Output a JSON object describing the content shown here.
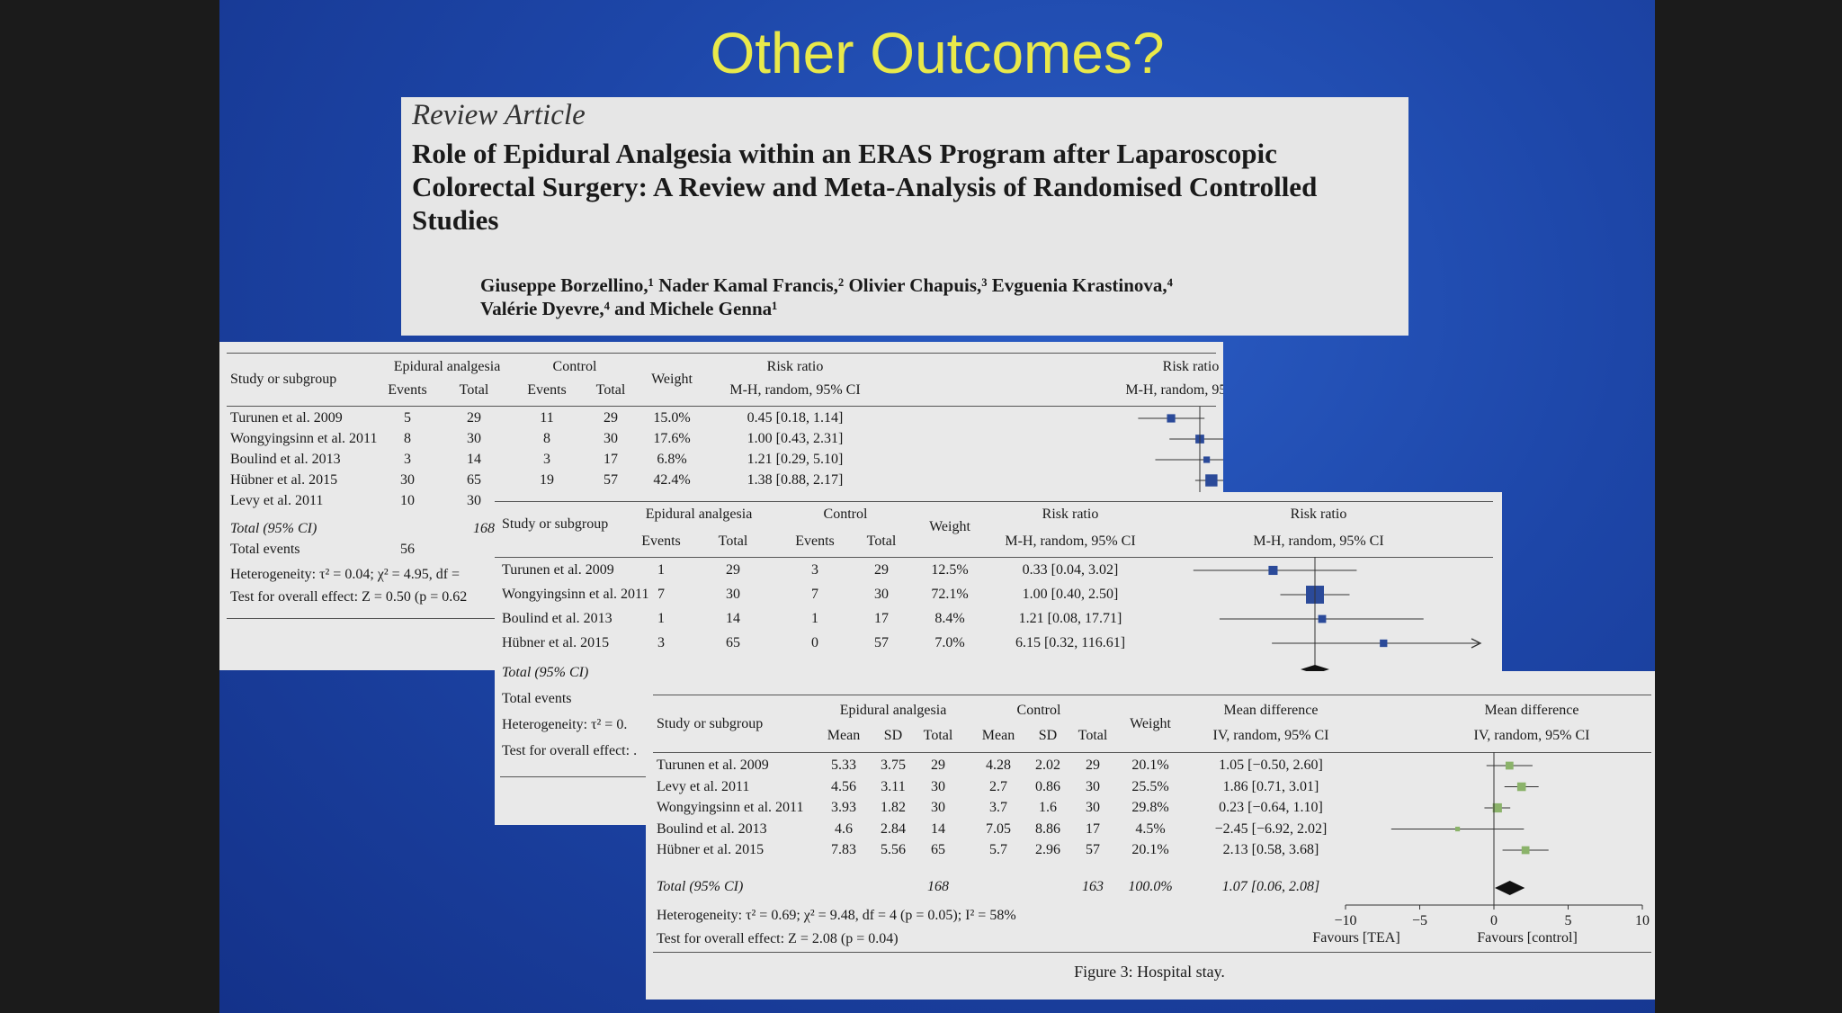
{
  "slide_title": "Other Outcomes?",
  "article": {
    "label": "Review Article",
    "title": "Role of Epidural Analgesia within an ERAS Program after Laparoscopic Colorectal Surgery: A Review and Meta-Analysis of Randomised Controlled Studies",
    "authors_line1": "Giuseppe Borzellino,¹ Nader Kamal Francis,² Olivier Chapuis,³ Evguenia Krastinova,⁴",
    "authors_line2": "Valérie Dyevre,⁴ and Michele Genna¹"
  },
  "chart_data": [
    {
      "type": "table",
      "headers": {
        "study": "Study or subgroup",
        "epidural": "Epidural analgesia",
        "control": "Control",
        "events": "Events",
        "total": "Total",
        "weight": "Weight",
        "rr": "Risk ratio",
        "rr_method": "M-H, random, 95% CI"
      },
      "rows": [
        {
          "study": "Turunen et al. 2009",
          "e_events": "5",
          "e_total": "29",
          "c_events": "11",
          "c_total": "29",
          "weight": "15.0%",
          "ci": "0.45 [0.18, 1.14]",
          "est": 0.45,
          "lo": 0.18,
          "hi": 1.14
        },
        {
          "study": "Wongyingsinn et al. 2011",
          "e_events": "8",
          "e_total": "30",
          "c_events": "8",
          "c_total": "30",
          "weight": "17.6%",
          "ci": "1.00 [0.43, 2.31]",
          "est": 1.0,
          "lo": 0.43,
          "hi": 2.31
        },
        {
          "study": "Boulind et al. 2013",
          "e_events": "3",
          "e_total": "14",
          "c_events": "3",
          "c_total": "17",
          "weight": "6.8%",
          "ci": "1.21 [0.29, 5.10]",
          "est": 1.21,
          "lo": 0.29,
          "hi": 5.1
        },
        {
          "study": "Hübner et al. 2015",
          "e_events": "30",
          "e_total": "65",
          "c_events": "19",
          "c_total": "57",
          "weight": "42.4%",
          "ci": "1.38 [0.88, 2.17]",
          "est": 1.38,
          "lo": 0.88,
          "hi": 2.17
        },
        {
          "study": "Levy et al. 2011",
          "e_events": "10",
          "e_total": "30",
          "c_events": "",
          "c_total": "",
          "weight": "",
          "ci": ""
        }
      ],
      "total_label": "Total (95% CI)",
      "total_e_total": "168",
      "events_label": "Total events",
      "events_value": "56",
      "heterogeneity": "Heterogeneity: τ² = 0.04; χ² = 4.95, df =",
      "overall": "Test for overall effect: Z = 0.50 (p = 0.62"
    },
    {
      "type": "table",
      "headers": {
        "study": "Study or subgroup",
        "epidural": "Epidural analgesia",
        "control": "Control",
        "events": "Events",
        "total": "Total",
        "weight": "Weight",
        "rr": "Risk ratio",
        "rr_method": "M-H, random, 95% CI"
      },
      "rows": [
        {
          "study": "Turunen et al. 2009",
          "e_events": "1",
          "e_total": "29",
          "c_events": "3",
          "c_total": "29",
          "weight": "12.5%",
          "ci": "0.33 [0.04, 3.02]",
          "est": 0.33,
          "lo": 0.04,
          "hi": 3.02
        },
        {
          "study": "Wongyingsinn et al. 2011",
          "e_events": "7",
          "e_total": "30",
          "c_events": "7",
          "c_total": "30",
          "weight": "72.1%",
          "ci": "1.00 [0.40, 2.50]",
          "est": 1.0,
          "lo": 0.4,
          "hi": 2.5
        },
        {
          "study": "Boulind et al. 2013",
          "e_events": "1",
          "e_total": "14",
          "c_events": "1",
          "c_total": "17",
          "weight": "8.4%",
          "ci": "1.21 [0.08, 17.71]",
          "est": 1.21,
          "lo": 0.08,
          "hi": 17.71
        },
        {
          "study": "Hübner et al. 2015",
          "e_events": "3",
          "e_total": "65",
          "c_events": "0",
          "c_total": "57",
          "weight": "7.0%",
          "ci": "6.15 [0.32, 116.61]",
          "est": 6.15,
          "lo": 0.32,
          "hi": 116.61
        }
      ],
      "total_label": "Total (95% CI)",
      "events_label": "Total events",
      "heterogeneity": "Heterogeneity: τ² = 0.",
      "overall": "Test for overall effect: ."
    },
    {
      "type": "table",
      "headers": {
        "study": "Study or subgroup",
        "epidural": "Epidural analgesia",
        "control": "Control",
        "mean": "Mean",
        "sd": "SD",
        "total": "Total",
        "weight": "Weight",
        "md": "Mean difference",
        "md_method": "IV, random, 95% CI"
      },
      "rows": [
        {
          "study": "Turunen et al. 2009",
          "e_mean": "5.33",
          "e_sd": "3.75",
          "e_total": "29",
          "c_mean": "4.28",
          "c_sd": "2.02",
          "c_total": "29",
          "weight": "20.1%",
          "ci": "1.05 [−0.50, 2.60]",
          "est": 1.05,
          "lo": -0.5,
          "hi": 2.6
        },
        {
          "study": "Levy et al. 2011",
          "e_mean": "4.56",
          "e_sd": "3.11",
          "e_total": "30",
          "c_mean": "2.7",
          "c_sd": "0.86",
          "c_total": "30",
          "weight": "25.5%",
          "ci": "1.86 [0.71, 3.01]",
          "est": 1.86,
          "lo": 0.71,
          "hi": 3.01
        },
        {
          "study": "Wongyingsinn et al. 2011",
          "e_mean": "3.93",
          "e_sd": "1.82",
          "e_total": "30",
          "c_mean": "3.7",
          "c_sd": "1.6",
          "c_total": "30",
          "weight": "29.8%",
          "ci": "0.23 [−0.64, 1.10]",
          "est": 0.23,
          "lo": -0.64,
          "hi": 1.1
        },
        {
          "study": "Boulind et al. 2013",
          "e_mean": "4.6",
          "e_sd": "2.84",
          "e_total": "14",
          "c_mean": "7.05",
          "c_sd": "8.86",
          "c_total": "17",
          "weight": "4.5%",
          "ci": "−2.45 [−6.92, 2.02]",
          "est": -2.45,
          "lo": -6.92,
          "hi": 2.02
        },
        {
          "study": "Hübner et al. 2015",
          "e_mean": "7.83",
          "e_sd": "5.56",
          "e_total": "65",
          "c_mean": "5.7",
          "c_sd": "2.96",
          "c_total": "57",
          "weight": "20.1%",
          "ci": "2.13 [0.58, 3.68]",
          "est": 2.13,
          "lo": 0.58,
          "hi": 3.68
        }
      ],
      "total_label": "Total (95% CI)",
      "total_e_total": "168",
      "total_c_total": "163",
      "total_weight": "100.0%",
      "total_ci": "1.07 [0.06, 2.08]",
      "total_est": 1.07,
      "total_lo": 0.06,
      "total_hi": 2.08,
      "heterogeneity": "Heterogeneity: τ² = 0.69; χ² = 9.48, df = 4 (p = 0.05); I² = 58%",
      "overall": "Test for overall effect: Z = 2.08 (p = 0.04)",
      "axis_ticks": [
        "−10",
        "−5",
        "0",
        "5",
        "10"
      ],
      "xlim": [
        -10,
        10
      ],
      "favours_left": "Favours [TEA]",
      "favours_right": "Favours [control]",
      "caption": "Figure 3: Hospital stay."
    }
  ],
  "colors": {
    "title": "#e9e94a",
    "marker_rr": "#2b4a99",
    "marker_md": "#8bb36a"
  }
}
